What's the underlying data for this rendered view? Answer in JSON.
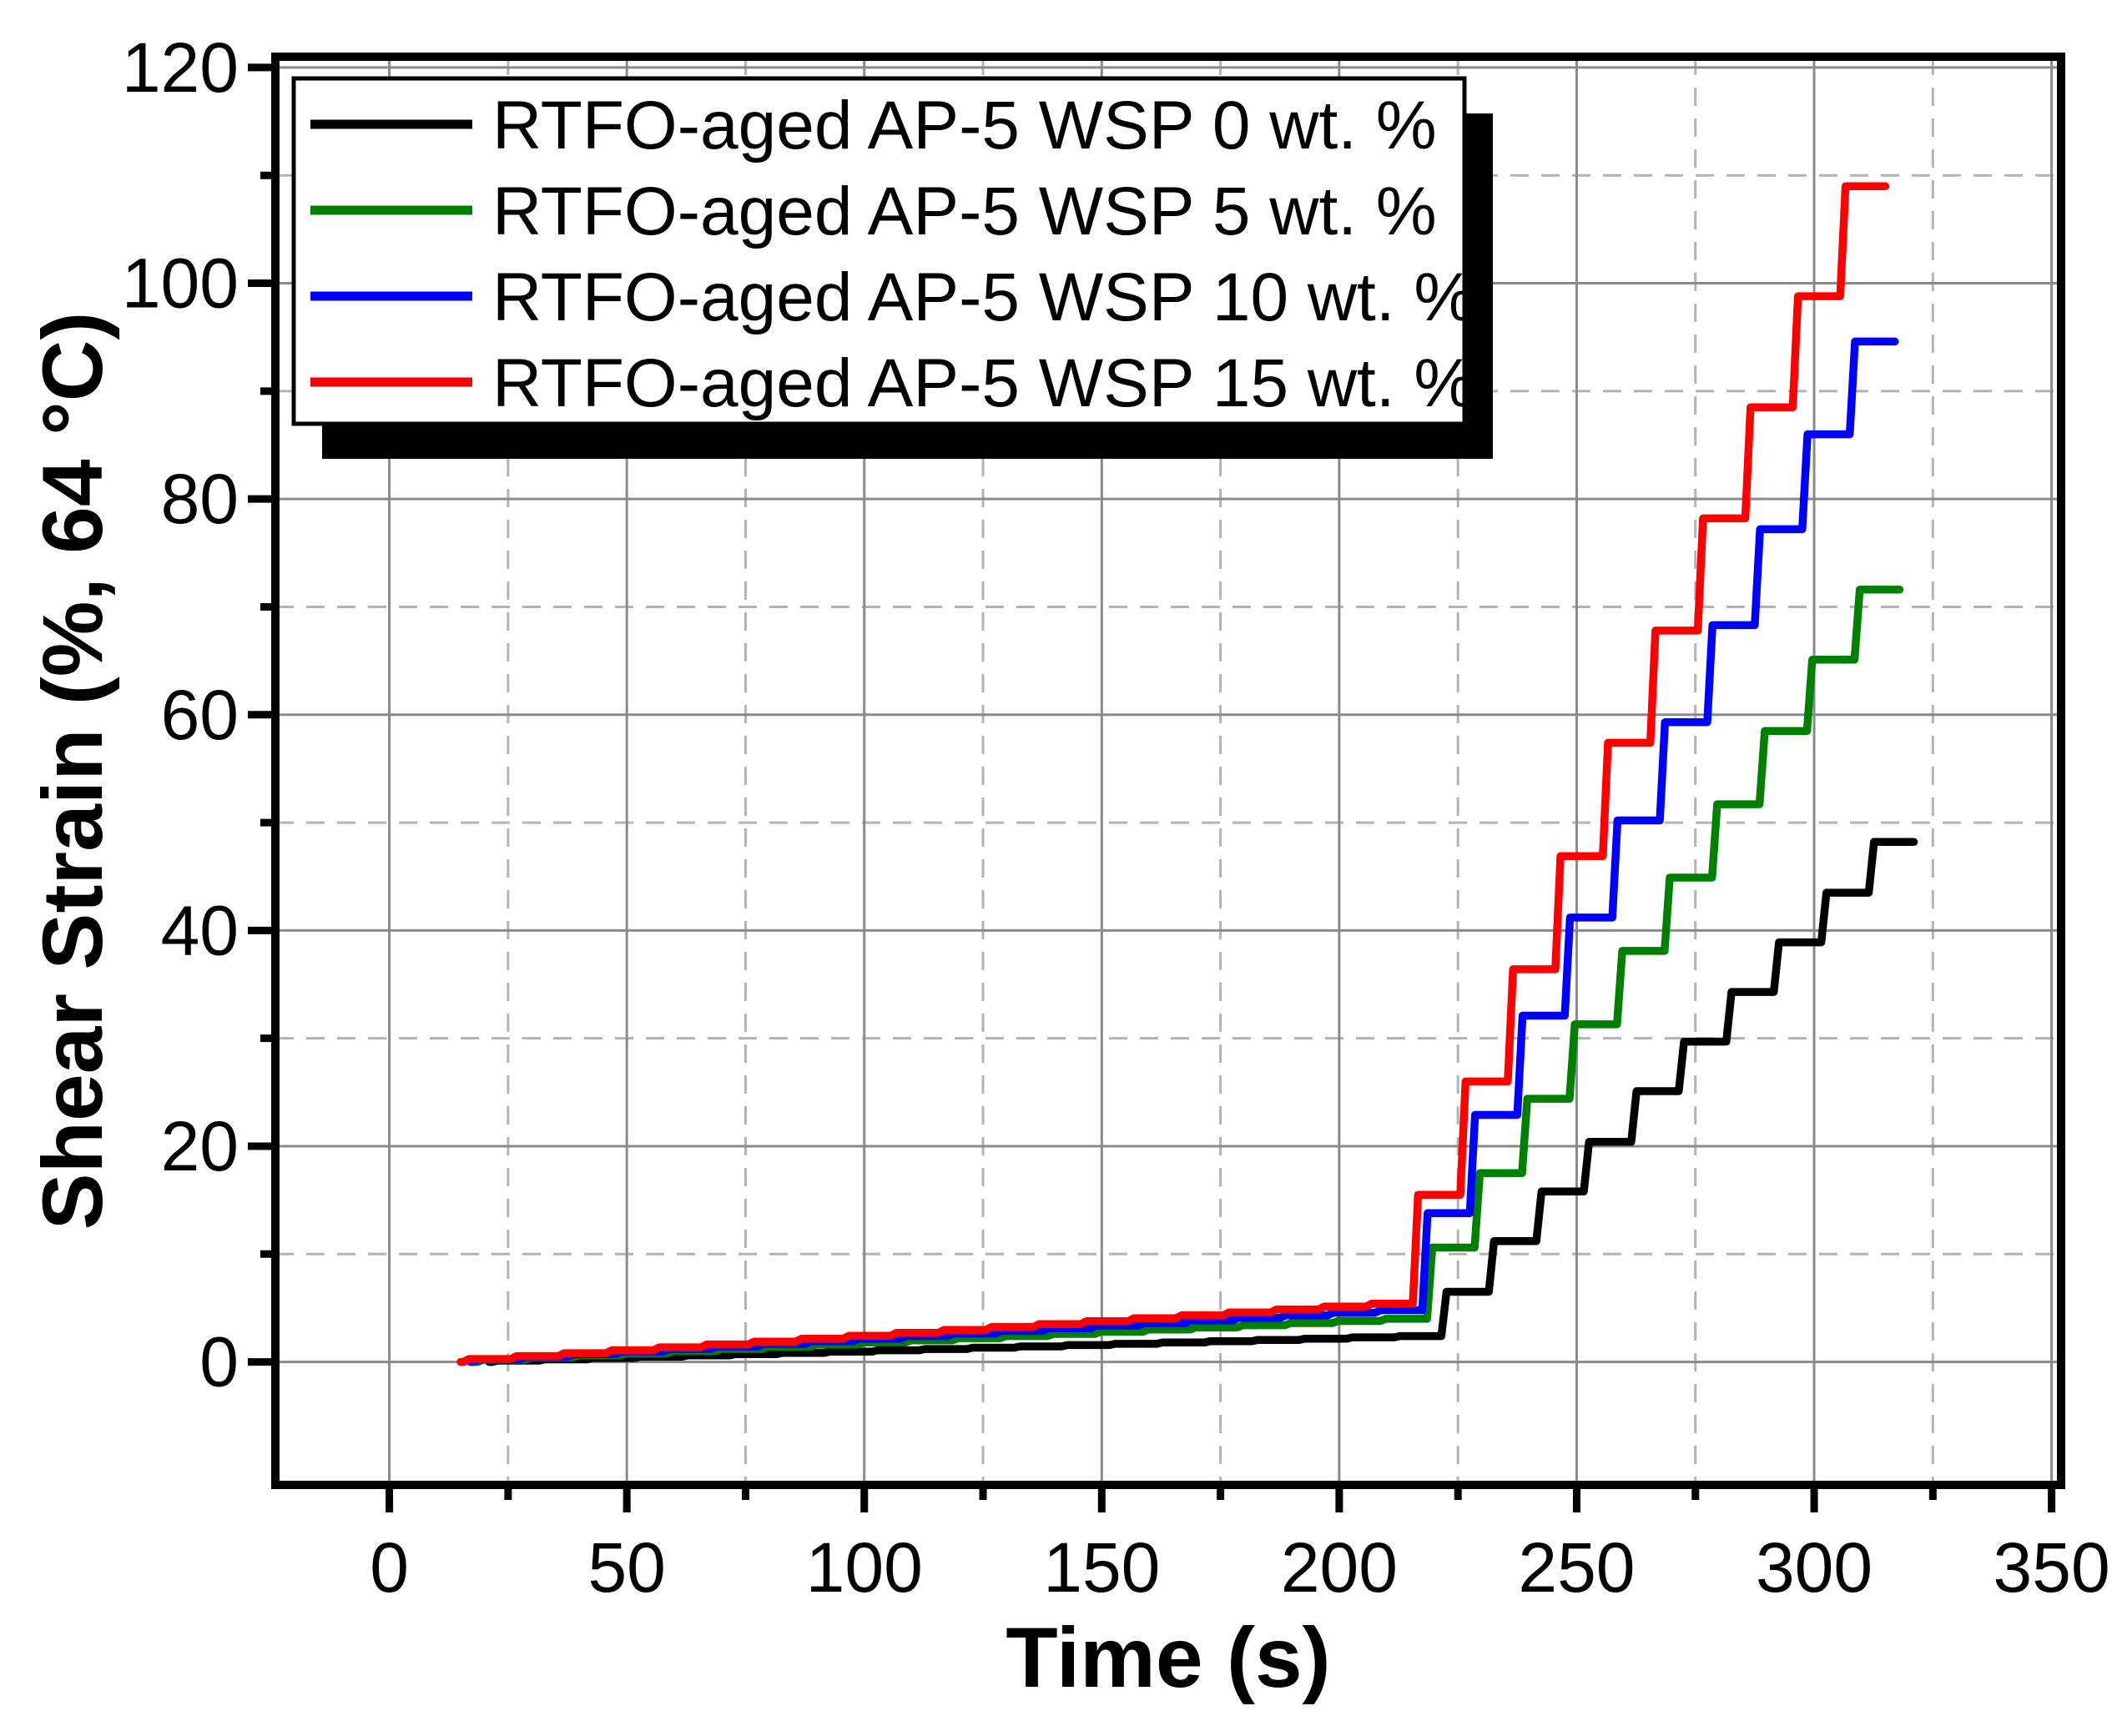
{
  "figure": {
    "background_color": "#FFFFFF",
    "frame_color": "#000000",
    "grid_major_color": "#8A8A8A",
    "grid_minor_color": "#B3B3B3",
    "tick_color": "#000000"
  },
  "chart_data": {
    "type": "line",
    "subtype": "step-creep-recovery",
    "title": "",
    "xlabel": "Time (s)",
    "ylabel": "Shear Strain (%, 64 °C)",
    "xlim": [
      -24,
      352
    ],
    "ylim": [
      -11.4,
      121
    ],
    "x_ticks_major": [
      0,
      50,
      100,
      150,
      200,
      250,
      300,
      350
    ],
    "x_tick_labels": [
      "0",
      "50",
      "100",
      "150",
      "200",
      "250",
      "300",
      "350"
    ],
    "x_ticks_minor": [
      25,
      75,
      125,
      175,
      225,
      275,
      325
    ],
    "y_ticks_major": [
      0,
      20,
      40,
      60,
      80,
      100,
      120
    ],
    "y_tick_labels": [
      "0",
      "20",
      "40",
      "60",
      "80",
      "100",
      "120"
    ],
    "y_ticks_minor": [
      10,
      30,
      50,
      70,
      90,
      110
    ],
    "grid": "major-solid-minor-dashed",
    "legend_position": "top-left-inside",
    "series": [
      {
        "name": "RTFO-aged AP-5 WSP 0 wt. %",
        "color": "#000000",
        "line_width": 9.5,
        "start_time_s": 21,
        "creep_phase_1": {
          "cycles": 20,
          "period_s": 10,
          "end_value": 2.4,
          "profile": "linear"
        },
        "creep_phase_2": {
          "cycles": 10,
          "period_s": 10,
          "plateaus": [
            6.5,
            11.2,
            15.8,
            20.4,
            25.1,
            29.7,
            34.3,
            38.9,
            43.5,
            48.2
          ]
        }
      },
      {
        "name": "RTFO-aged AP-5 WSP 5 wt. %",
        "color": "#008000",
        "line_width": 9.5,
        "start_time_s": 18,
        "creep_phase_1": {
          "cycles": 20,
          "period_s": 10,
          "end_value": 4.0,
          "profile": "linear"
        },
        "creep_phase_2": {
          "cycles": 10,
          "period_s": 10,
          "plateaus": [
            10.6,
            17.5,
            24.4,
            31.3,
            38.1,
            44.9,
            51.7,
            58.5,
            65.1,
            71.6
          ]
        }
      },
      {
        "name": "RTFO-aged AP-5 WSP 10 wt. %",
        "color": "#0000FF",
        "line_width": 9.5,
        "start_time_s": 17,
        "creep_phase_1": {
          "cycles": 20,
          "period_s": 10,
          "end_value": 4.8,
          "profile": "linear"
        },
        "creep_phase_2": {
          "cycles": 10,
          "period_s": 10,
          "plateaus": [
            13.8,
            22.9,
            32.1,
            41.2,
            50.2,
            59.3,
            68.3,
            77.2,
            86.0,
            94.6
          ]
        }
      },
      {
        "name": "RTFO-aged AP-5 WSP 15 wt. %",
        "color": "#FF0000",
        "line_width": 9.5,
        "start_time_s": 15,
        "creep_phase_1": {
          "cycles": 20,
          "period_s": 10,
          "end_value": 5.4,
          "profile": "linear"
        },
        "creep_phase_2": {
          "cycles": 10,
          "period_s": 10,
          "plateaus": [
            15.5,
            26.0,
            36.4,
            46.9,
            57.4,
            67.8,
            78.2,
            88.5,
            98.8,
            109.0
          ]
        }
      }
    ]
  },
  "legend": {
    "border_color": "#000000",
    "fill_color": "#FFFFFF",
    "shadow_color": "#000000",
    "entries": [
      {
        "label": "RTFO-aged AP-5 WSP 0 wt. %",
        "color": "#000000"
      },
      {
        "label": "RTFO-aged AP-5 WSP 5 wt. %",
        "color": "#008000"
      },
      {
        "label": "RTFO-aged AP-5 WSP 10 wt. %",
        "color": "#0000FF"
      },
      {
        "label": "RTFO-aged AP-5 WSP 15 wt. %",
        "color": "#FF0000"
      }
    ]
  }
}
